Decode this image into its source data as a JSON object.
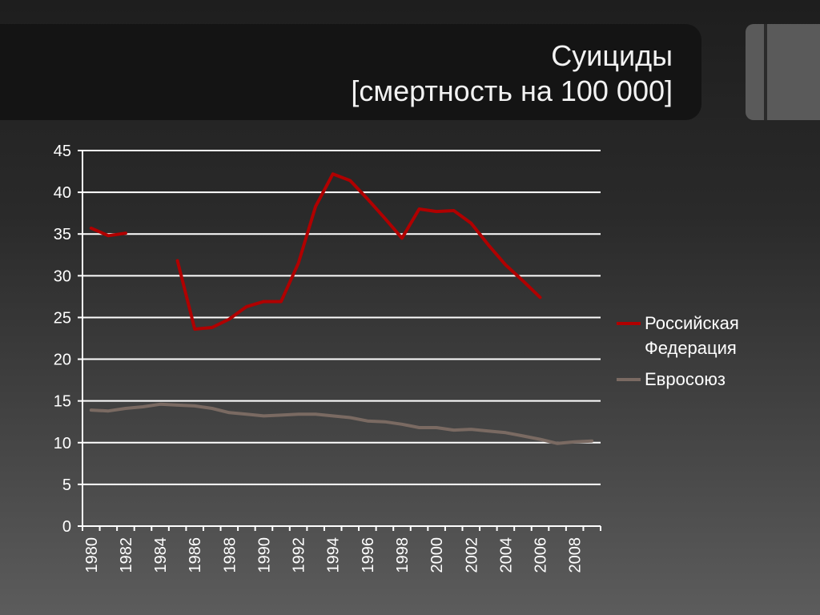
{
  "slide": {
    "title_line1": "Суициды",
    "title_line2": "[смертность на 100 000]"
  },
  "colors": {
    "russia": "#b00000",
    "eu": "#7a6a62",
    "grid": "#ffffff",
    "text": "#ffffff"
  },
  "chart_data": {
    "type": "line",
    "title": "",
    "xlabel": "",
    "ylabel": "",
    "ylim": [
      0,
      45
    ],
    "y_ticks": [
      0,
      5,
      10,
      15,
      20,
      25,
      30,
      35,
      40,
      45
    ],
    "grid": true,
    "legend_position": "right",
    "x": [
      1980,
      1981,
      1982,
      1983,
      1984,
      1985,
      1986,
      1987,
      1988,
      1989,
      1990,
      1991,
      1992,
      1993,
      1994,
      1995,
      1996,
      1997,
      1998,
      1999,
      2000,
      2001,
      2002,
      2003,
      2004,
      2005,
      2006,
      2007,
      2008,
      2009
    ],
    "x_tick_labels": [
      "1980",
      "1982",
      "1984",
      "1986",
      "1988",
      "1990",
      "1992",
      "1994",
      "1996",
      "1998",
      "2000",
      "2002",
      "2004",
      "2006",
      "2008"
    ],
    "series": [
      {
        "name": "Российская Федерация",
        "color": "#b00000",
        "values": [
          35.7,
          34.8,
          35.1,
          null,
          null,
          31.8,
          23.6,
          23.8,
          24.8,
          26.3,
          26.9,
          26.9,
          31.5,
          38.3,
          42.2,
          41.4,
          39.2,
          36.9,
          34.5,
          38.0,
          37.7,
          37.8,
          36.3,
          33.7,
          31.3,
          29.4,
          27.4,
          null,
          null,
          null
        ]
      },
      {
        "name": "Евросоюз",
        "color": "#7a6a62",
        "values": [
          13.9,
          13.8,
          14.1,
          14.3,
          14.6,
          14.5,
          14.4,
          14.1,
          13.6,
          13.4,
          13.2,
          13.3,
          13.4,
          13.4,
          13.2,
          13.0,
          12.6,
          12.5,
          12.2,
          11.8,
          11.8,
          11.5,
          11.6,
          11.4,
          11.2,
          10.8,
          10.4,
          9.9,
          10.1,
          10.2
        ]
      }
    ]
  }
}
